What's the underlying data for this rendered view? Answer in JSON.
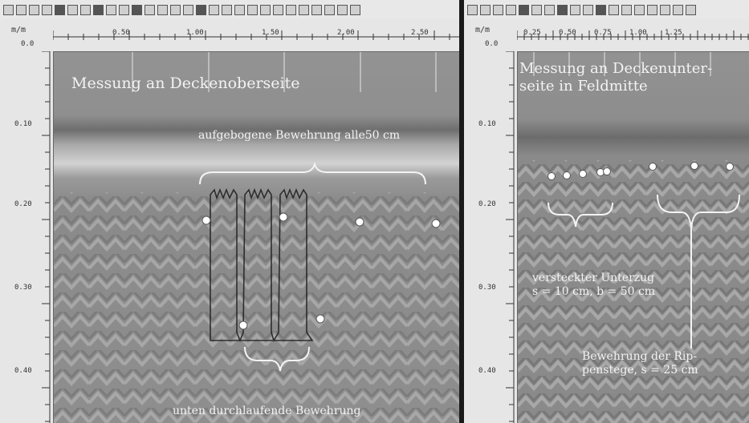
{
  "left_panel": {
    "axis_unit": "m/m",
    "depth_origin": "0.0",
    "x_ticks": [
      "0.50",
      "1.00",
      "1.50",
      "2.00",
      "2.50"
    ],
    "depth_ticks": [
      "0.10",
      "0.20",
      "0.30",
      "0.40"
    ],
    "title": "Messung an Deckenoberseite",
    "annotation_top": "aufgebogene Bewehrung alle50 cm",
    "annotation_bottom": "unten durchlaufende Bewehrung"
  },
  "right_panel": {
    "axis_unit": "m/m",
    "depth_origin": "0.0",
    "x_ticks": [
      "0.25",
      "0.50",
      "0.75",
      "1.00",
      "1.25"
    ],
    "depth_ticks": [
      "0.10",
      "0.20",
      "0.30",
      "0.40"
    ],
    "title": "Messung an Deckenunter-\nseite in Feldmitte",
    "annotation_beam": "versteckter Unterzug\ns = 10 cm, b = 50 cm",
    "annotation_ribs": "Bewehrung der Rip-\npenstege, s = 25 cm"
  },
  "colors": {
    "toolbar": "#e8e8e8",
    "ruler": "#e6e6e6",
    "radar_base": "#8c8c8c",
    "overlay_text": "#f3f3f3"
  }
}
